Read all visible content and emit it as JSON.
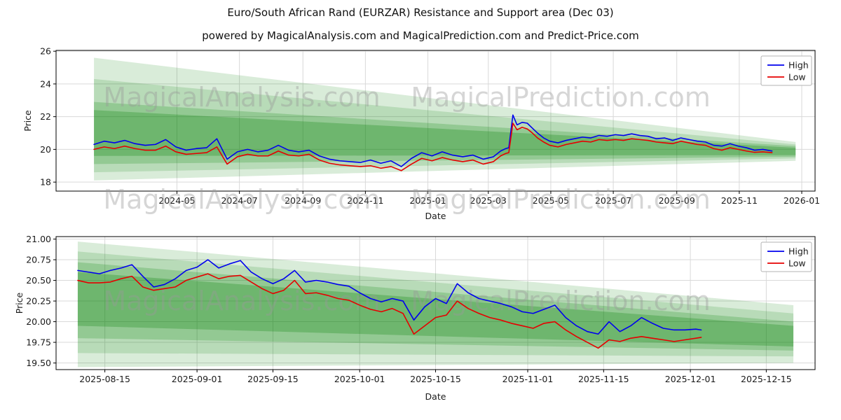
{
  "figure": {
    "title": "Euro/South African Rand (EURZAR) Resistance and Support area (Dec 03)",
    "subtitle": "powered by MagicalAnalysis.com and MagicalPrediction.com and Predict-Price.com"
  },
  "watermark": {
    "left": "MagicalAnalysis.com",
    "right": "MagicalPrediction.com"
  },
  "colors": {
    "high": "#0000ee",
    "low": "#e60000",
    "band": "#008000",
    "grid": "#d9d9d9",
    "spine": "#000000",
    "watermark": "#999999",
    "text": "#1a1a1a"
  },
  "chart_data": [
    {
      "type": "line",
      "xlabel": "Date",
      "ylabel": "Price",
      "xlim": [
        "2024-01-04",
        "2026-01-14"
      ],
      "ylim": [
        17.45,
        26.05
      ],
      "grid": true,
      "legend_position": "upper right",
      "x_ticks": [
        {
          "date": "2024-05-01",
          "label": "2024-05"
        },
        {
          "date": "2024-07-01",
          "label": "2024-07"
        },
        {
          "date": "2024-09-01",
          "label": "2024-09"
        },
        {
          "date": "2024-11-01",
          "label": "2024-11"
        },
        {
          "date": "2025-01-01",
          "label": "2025-01"
        },
        {
          "date": "2025-03-01",
          "label": "2025-03"
        },
        {
          "date": "2025-05-01",
          "label": "2025-05"
        },
        {
          "date": "2025-07-01",
          "label": "2025-07"
        },
        {
          "date": "2025-09-01",
          "label": "2025-09"
        },
        {
          "date": "2025-11-01",
          "label": "2025-11"
        },
        {
          "date": "2026-01-01",
          "label": "2026-01"
        }
      ],
      "y_ticks": [
        {
          "value": 18,
          "label": "18"
        },
        {
          "value": 20,
          "label": "20"
        },
        {
          "value": 22,
          "label": "22"
        },
        {
          "value": 24,
          "label": "24"
        },
        {
          "value": 26,
          "label": "26"
        }
      ],
      "dates": [
        "2024-02-10",
        "2024-02-20",
        "2024-03-01",
        "2024-03-11",
        "2024-03-21",
        "2024-03-31",
        "2024-04-10",
        "2024-04-20",
        "2024-04-30",
        "2024-05-10",
        "2024-05-20",
        "2024-05-30",
        "2024-06-09",
        "2024-06-19",
        "2024-06-29",
        "2024-07-09",
        "2024-07-19",
        "2024-07-29",
        "2024-08-08",
        "2024-08-18",
        "2024-08-28",
        "2024-09-07",
        "2024-09-17",
        "2024-09-27",
        "2024-10-07",
        "2024-10-17",
        "2024-10-27",
        "2024-11-06",
        "2024-11-16",
        "2024-11-26",
        "2024-12-06",
        "2024-12-16",
        "2024-12-26",
        "2025-01-05",
        "2025-01-15",
        "2025-01-25",
        "2025-02-04",
        "2025-02-14",
        "2025-02-24",
        "2025-03-06",
        "2025-03-13",
        "2025-03-18",
        "2025-03-21",
        "2025-03-25",
        "2025-03-29",
        "2025-04-03",
        "2025-04-08",
        "2025-04-13",
        "2025-04-18",
        "2025-04-24",
        "2025-04-30",
        "2025-05-08",
        "2025-05-16",
        "2025-05-24",
        "2025-06-01",
        "2025-06-09",
        "2025-06-17",
        "2025-06-25",
        "2025-07-03",
        "2025-07-11",
        "2025-07-19",
        "2025-07-27",
        "2025-08-04",
        "2025-08-12",
        "2025-08-20",
        "2025-08-28",
        "2025-09-05",
        "2025-09-13",
        "2025-09-21",
        "2025-09-29",
        "2025-10-07",
        "2025-10-15",
        "2025-10-23",
        "2025-10-31",
        "2025-11-08",
        "2025-11-16",
        "2025-11-24",
        "2025-12-03"
      ],
      "series": [
        {
          "name": "High",
          "color": "#0000ee",
          "values": [
            20.3,
            20.5,
            20.4,
            20.55,
            20.35,
            20.25,
            20.3,
            20.6,
            20.15,
            19.95,
            20.05,
            20.1,
            20.65,
            19.4,
            19.85,
            20.0,
            19.85,
            19.95,
            20.25,
            19.95,
            19.85,
            19.95,
            19.6,
            19.4,
            19.3,
            19.25,
            19.2,
            19.35,
            19.15,
            19.3,
            18.95,
            19.45,
            19.8,
            19.6,
            19.85,
            19.65,
            19.55,
            19.65,
            19.4,
            19.55,
            19.9,
            20.05,
            20.1,
            22.1,
            21.5,
            21.65,
            21.6,
            21.3,
            21.0,
            20.7,
            20.5,
            20.4,
            20.55,
            20.65,
            20.75,
            20.7,
            20.85,
            20.8,
            20.9,
            20.85,
            20.95,
            20.85,
            20.8,
            20.65,
            20.7,
            20.55,
            20.7,
            20.6,
            20.5,
            20.45,
            20.25,
            20.2,
            20.35,
            20.2,
            20.1,
            19.95,
            20.0,
            19.9
          ]
        },
        {
          "name": "Low",
          "color": "#e60000",
          "values": [
            20.0,
            20.15,
            20.05,
            20.2,
            20.05,
            19.95,
            19.95,
            20.2,
            19.85,
            19.7,
            19.75,
            19.8,
            20.15,
            19.1,
            19.55,
            19.7,
            19.6,
            19.6,
            19.9,
            19.65,
            19.6,
            19.7,
            19.35,
            19.15,
            19.05,
            19.0,
            18.95,
            19.0,
            18.85,
            18.95,
            18.7,
            19.1,
            19.45,
            19.3,
            19.5,
            19.35,
            19.25,
            19.35,
            19.1,
            19.25,
            19.6,
            19.75,
            19.8,
            21.6,
            21.2,
            21.35,
            21.25,
            21.0,
            20.7,
            20.45,
            20.25,
            20.15,
            20.3,
            20.4,
            20.5,
            20.45,
            20.6,
            20.55,
            20.6,
            20.55,
            20.65,
            20.6,
            20.55,
            20.45,
            20.4,
            20.35,
            20.5,
            20.4,
            20.3,
            20.25,
            20.05,
            19.95,
            20.1,
            20.0,
            19.9,
            19.82,
            19.85,
            19.8
          ]
        }
      ],
      "bands": {
        "color": "#008000",
        "items": [
          {
            "x": [
              "2024-02-10",
              "2025-12-26"
            ],
            "top": [
              25.6,
              20.45
            ],
            "bottom": [
              18.1,
              19.3
            ],
            "alpha": 0.15
          },
          {
            "x": [
              "2024-02-10",
              "2025-12-26"
            ],
            "top": [
              24.3,
              20.3
            ],
            "bottom": [
              18.6,
              19.45
            ],
            "alpha": 0.15
          },
          {
            "x": [
              "2024-02-10",
              "2025-12-26"
            ],
            "top": [
              22.9,
              20.2
            ],
            "bottom": [
              19.1,
              19.55
            ],
            "alpha": 0.2
          },
          {
            "x": [
              "2024-02-10",
              "2025-12-26"
            ],
            "top": [
              22.4,
              20.1
            ],
            "bottom": [
              19.6,
              19.65
            ],
            "alpha": 0.25
          }
        ]
      }
    },
    {
      "type": "line",
      "xlabel": "Date",
      "ylabel": "Price",
      "xlim": [
        "2025-08-06",
        "2025-12-24"
      ],
      "ylim": [
        19.42,
        21.03
      ],
      "grid": true,
      "legend_position": "upper right",
      "x_ticks": [
        {
          "date": "2025-08-15",
          "label": "2025-08-15"
        },
        {
          "date": "2025-09-01",
          "label": "2025-09-01"
        },
        {
          "date": "2025-09-15",
          "label": "2025-09-15"
        },
        {
          "date": "2025-10-01",
          "label": "2025-10-01"
        },
        {
          "date": "2025-10-15",
          "label": "2025-10-15"
        },
        {
          "date": "2025-11-01",
          "label": "2025-11-01"
        },
        {
          "date": "2025-11-15",
          "label": "2025-11-15"
        },
        {
          "date": "2025-12-01",
          "label": "2025-12-01"
        },
        {
          "date": "2025-12-15",
          "label": "2025-12-15"
        }
      ],
      "y_ticks": [
        {
          "value": 19.5,
          "label": "19.50"
        },
        {
          "value": 19.75,
          "label": "19.75"
        },
        {
          "value": 20.0,
          "label": "20.00"
        },
        {
          "value": 20.25,
          "label": "20.25"
        },
        {
          "value": 20.5,
          "label": "20.50"
        },
        {
          "value": 20.75,
          "label": "20.75"
        },
        {
          "value": 21.0,
          "label": "21.00"
        }
      ],
      "dates": [
        "2025-08-10",
        "2025-08-12",
        "2025-08-14",
        "2025-08-16",
        "2025-08-18",
        "2025-08-20",
        "2025-08-22",
        "2025-08-24",
        "2025-08-26",
        "2025-08-28",
        "2025-08-30",
        "2025-09-01",
        "2025-09-03",
        "2025-09-05",
        "2025-09-07",
        "2025-09-09",
        "2025-09-11",
        "2025-09-13",
        "2025-09-15",
        "2025-09-17",
        "2025-09-19",
        "2025-09-21",
        "2025-09-23",
        "2025-09-25",
        "2025-09-27",
        "2025-09-29",
        "2025-10-01",
        "2025-10-03",
        "2025-10-05",
        "2025-10-07",
        "2025-10-09",
        "2025-10-11",
        "2025-10-13",
        "2025-10-15",
        "2025-10-17",
        "2025-10-19",
        "2025-10-21",
        "2025-10-23",
        "2025-10-25",
        "2025-10-27",
        "2025-10-29",
        "2025-10-31",
        "2025-11-02",
        "2025-11-04",
        "2025-11-06",
        "2025-11-08",
        "2025-11-10",
        "2025-11-12",
        "2025-11-14",
        "2025-11-16",
        "2025-11-18",
        "2025-11-20",
        "2025-11-22",
        "2025-11-24",
        "2025-11-26",
        "2025-11-28",
        "2025-11-30",
        "2025-12-02",
        "2025-12-03"
      ],
      "series": [
        {
          "name": "High",
          "color": "#0000ee",
          "values": [
            20.62,
            20.6,
            20.58,
            20.62,
            20.65,
            20.69,
            20.55,
            20.42,
            20.45,
            20.52,
            20.62,
            20.66,
            20.75,
            20.65,
            20.7,
            20.74,
            20.6,
            20.52,
            20.46,
            20.52,
            20.62,
            20.48,
            20.5,
            20.48,
            20.45,
            20.43,
            20.35,
            20.28,
            20.24,
            20.28,
            20.25,
            20.02,
            20.18,
            20.28,
            20.22,
            20.46,
            20.35,
            20.28,
            20.25,
            20.22,
            20.18,
            20.12,
            20.1,
            20.15,
            20.2,
            20.05,
            19.95,
            19.88,
            19.85,
            20.0,
            19.88,
            19.95,
            20.05,
            19.98,
            19.92,
            19.9,
            19.9,
            19.91,
            19.9
          ]
        },
        {
          "name": "Low",
          "color": "#e60000",
          "values": [
            20.5,
            20.47,
            20.47,
            20.48,
            20.52,
            20.55,
            20.42,
            20.38,
            20.4,
            20.42,
            20.5,
            20.54,
            20.58,
            20.52,
            20.55,
            20.56,
            20.48,
            20.4,
            20.34,
            20.38,
            20.5,
            20.34,
            20.35,
            20.32,
            20.28,
            20.26,
            20.2,
            20.15,
            20.12,
            20.16,
            20.1,
            19.85,
            19.95,
            20.05,
            20.08,
            20.25,
            20.16,
            20.1,
            20.05,
            20.02,
            19.98,
            19.95,
            19.92,
            19.98,
            20.0,
            19.9,
            19.82,
            19.75,
            19.68,
            19.78,
            19.76,
            19.8,
            19.82,
            19.8,
            19.78,
            19.76,
            19.78,
            19.8,
            19.81
          ]
        }
      ],
      "bands": {
        "color": "#008000",
        "items": [
          {
            "x": [
              "2025-08-10",
              "2025-12-20"
            ],
            "top": [
              20.97,
              20.2
            ],
            "bottom": [
              19.45,
              19.5
            ],
            "alpha": 0.15
          },
          {
            "x": [
              "2025-08-10",
              "2025-12-20"
            ],
            "top": [
              20.85,
              20.1
            ],
            "bottom": [
              19.62,
              19.58
            ],
            "alpha": 0.15
          },
          {
            "x": [
              "2025-08-10",
              "2025-12-20"
            ],
            "top": [
              20.72,
              20.0
            ],
            "bottom": [
              19.8,
              19.65
            ],
            "alpha": 0.2
          },
          {
            "x": [
              "2025-08-10",
              "2025-12-20"
            ],
            "top": [
              20.6,
              19.95
            ],
            "bottom": [
              19.95,
              19.7
            ],
            "alpha": 0.25
          }
        ]
      }
    }
  ]
}
